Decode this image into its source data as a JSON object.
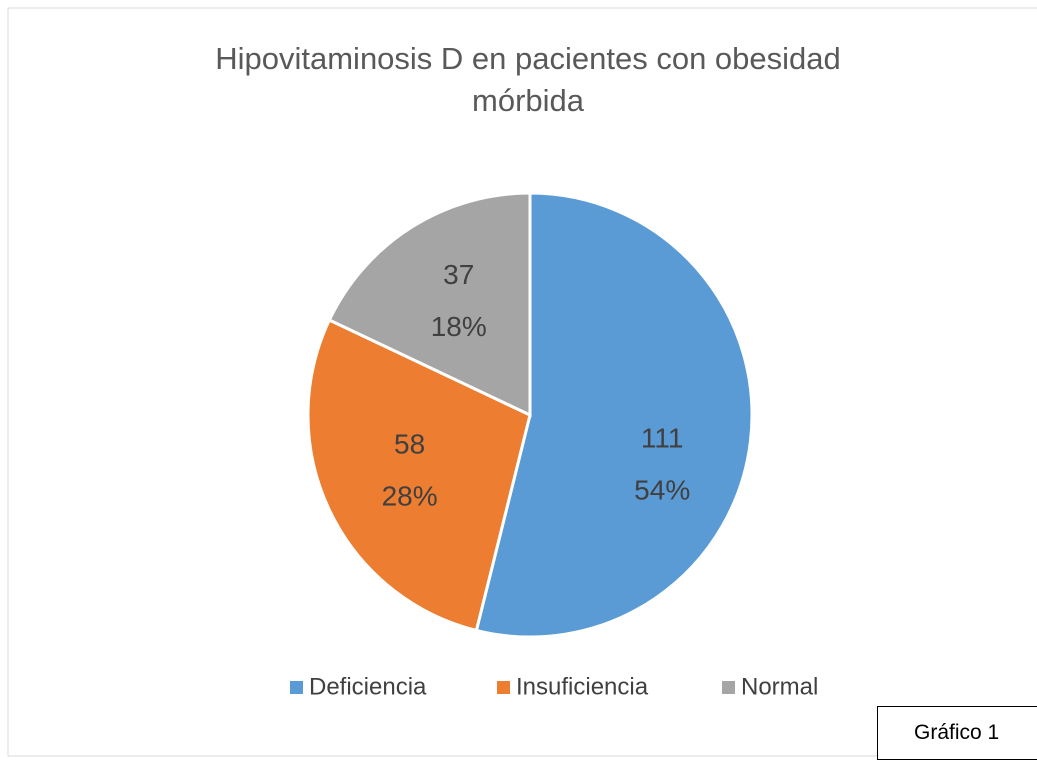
{
  "chart_data": {
    "type": "pie",
    "title": "Hipovitaminosis D en pacientes con obesidad mórbida",
    "categories": [
      "Deficiencia",
      "Insuficiencia",
      "Normal"
    ],
    "values": [
      111,
      58,
      37
    ],
    "percent_labels": [
      "54%",
      "28%",
      "18%"
    ],
    "colors": [
      "#5b9bd5",
      "#ed7d31",
      "#a5a5a5"
    ],
    "legend": "bottom",
    "caption": "Gráfico 1"
  }
}
